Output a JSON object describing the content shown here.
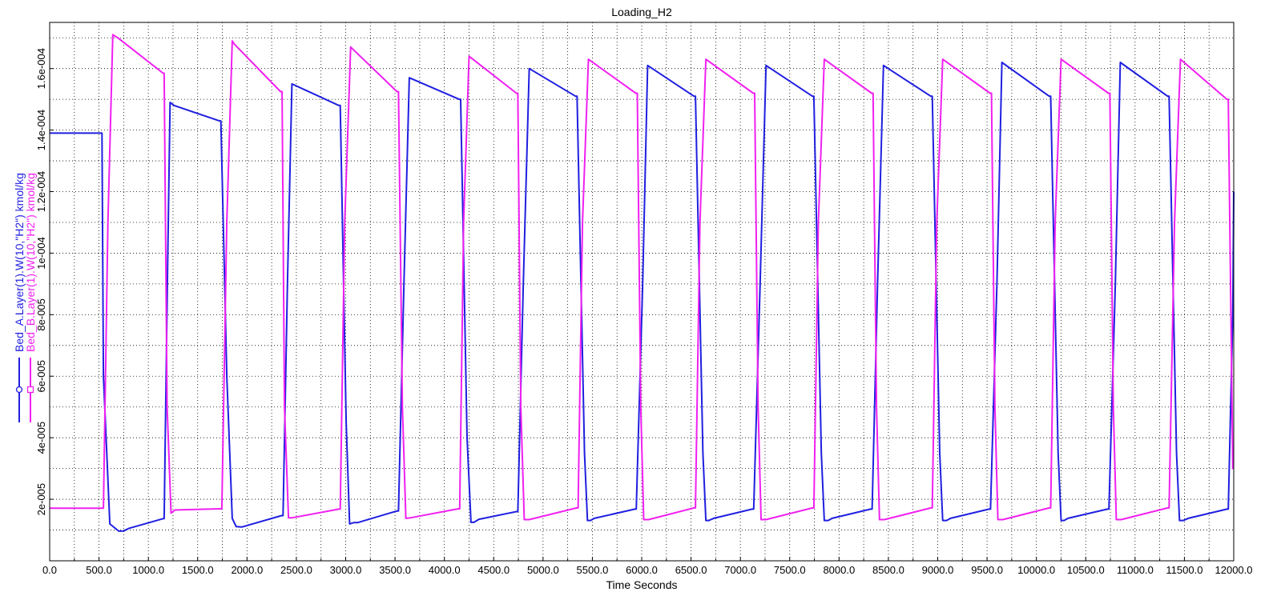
{
  "chart_data": {
    "type": "line",
    "title": "Loading_H2",
    "xlabel": "Time Seconds",
    "ylabel": "",
    "xlim": [
      0,
      12000
    ],
    "ylim": [
      0,
      0.000175
    ],
    "grid": true,
    "x_tick_values": [
      0,
      500,
      1000,
      1500,
      2000,
      2500,
      3000,
      3500,
      4000,
      4500,
      5000,
      5500,
      6000,
      6500,
      7000,
      7500,
      8000,
      8500,
      9000,
      9500,
      10000,
      10500,
      11000,
      11500,
      12000
    ],
    "x_tick_labels": [
      "0.0",
      "500.0",
      "1000.0",
      "1500.0",
      "2000.0",
      "2500.0",
      "3000.0",
      "3500.0",
      "4000.0",
      "4500.0",
      "5000.0",
      "5500.0",
      "6000.0",
      "6500.0",
      "7000.0",
      "7500.0",
      "8000.0",
      "8500.0",
      "9000.0",
      "9500.0",
      "10000.0",
      "10500.0",
      "11000.0",
      "11500.0",
      "12000.0"
    ],
    "y_tick_values": [
      2e-05,
      4e-05,
      6e-05,
      8e-05,
      0.0001,
      0.00012,
      0.00014,
      0.00016
    ],
    "y_tick_labels": [
      "2e-005",
      "4e-005",
      "6e-005",
      "8e-005",
      "1e-004",
      "1.2e-004",
      "1.4e-004",
      "1.6e-004"
    ],
    "legend_position": "left-vertical",
    "series": [
      {
        "name": "Bed_A.Layer(1).W(10,\"H2\") kmol/kg",
        "color": "#1f1fe0",
        "marker": "circle",
        "x": [
          0,
          530,
          545,
          610,
          700,
          750,
          800,
          1150,
          1160,
          1195,
          1220,
          1260,
          1720,
          1735,
          1795,
          1850,
          1890,
          1950,
          2350,
          2365,
          2410,
          2455,
          2930,
          2945,
          3005,
          3040,
          3080,
          3120,
          3520,
          3535,
          3590,
          3645,
          4150,
          4165,
          4230,
          4270,
          4300,
          4350,
          4730,
          4745,
          4800,
          4860,
          5330,
          5345,
          5420,
          5450,
          5480,
          5520,
          5930,
          5945,
          6010,
          6060,
          6530,
          6545,
          6620,
          6650,
          6680,
          6730,
          7120,
          7135,
          7200,
          7260,
          7730,
          7745,
          7820,
          7850,
          7890,
          7930,
          8320,
          8335,
          8390,
          8450,
          8930,
          8945,
          9020,
          9050,
          9090,
          9130,
          9520,
          9535,
          9600,
          9650,
          10130,
          10145,
          10220,
          10250,
          10280,
          10320,
          10720,
          10735,
          10800,
          10850,
          11330,
          11345,
          11420,
          11450,
          11490,
          11540,
          11930,
          11945,
          11990,
          12000
        ],
        "y": [
          0.000139,
          0.000139,
          6e-05,
          1.2e-05,
          9.65e-06,
          9.7e-06,
          1.05e-05,
          1.37e-05,
          1.37e-05,
          9.5e-05,
          0.000149,
          0.000148,
          0.000143,
          0.000143,
          6e-05,
          1.38e-05,
          1.11e-05,
          1.1e-05,
          1.47e-05,
          1.47e-05,
          9e-05,
          0.000155,
          0.000148,
          0.000148,
          4.5e-05,
          1.2e-05,
          1.24e-05,
          1.24e-05,
          1.62e-05,
          1.62e-05,
          9e-05,
          0.000157,
          0.00015,
          0.00015,
          4e-05,
          1.25e-05,
          1.25e-05,
          1.35e-05,
          1.6e-05,
          1.6e-05,
          9e-05,
          0.00016,
          0.000151,
          0.000151,
          3.5e-05,
          1.31e-05,
          1.31e-05,
          1.38e-05,
          1.68e-05,
          1.68e-05,
          9e-05,
          0.000161,
          0.000151,
          0.000151,
          3.5e-05,
          1.31e-05,
          1.31e-05,
          1.38e-05,
          1.68e-05,
          1.68e-05,
          9e-05,
          0.000161,
          0.000151,
          0.000151,
          3.5e-05,
          1.31e-05,
          1.31e-05,
          1.38e-05,
          1.68e-05,
          1.68e-05,
          9e-05,
          0.000161,
          0.000151,
          0.000151,
          3.5e-05,
          1.31e-05,
          1.31e-05,
          1.38e-05,
          1.68e-05,
          1.68e-05,
          9e-05,
          0.000162,
          0.000151,
          0.000151,
          3.5e-05,
          1.31e-05,
          1.31e-05,
          1.38e-05,
          1.68e-05,
          1.68e-05,
          9e-05,
          0.000162,
          0.000151,
          0.000151,
          3.5e-05,
          1.31e-05,
          1.31e-05,
          1.38e-05,
          1.68e-05,
          1.68e-05,
          8e-05,
          0.00012
        ]
      },
      {
        "name": "Bed_B.Layer(1).W(10,\"H2\") kmol/kg",
        "color": "#f020f0",
        "marker": "square",
        "x": [
          0,
          530,
          545,
          590,
          640,
          690,
          1150,
          1160,
          1190,
          1230,
          1270,
          1730,
          1745,
          1795,
          1850,
          1870,
          2340,
          2355,
          2380,
          2420,
          2460,
          2930,
          2945,
          2990,
          3050,
          3520,
          3535,
          3575,
          3610,
          3660,
          4140,
          4155,
          4195,
          4250,
          4730,
          4745,
          4775,
          4810,
          4860,
          5340,
          5355,
          5400,
          5460,
          5940,
          5955,
          5990,
          6020,
          6070,
          6530,
          6545,
          6590,
          6650,
          7130,
          7145,
          7180,
          7210,
          7260,
          7730,
          7745,
          7790,
          7850,
          8330,
          8345,
          8380,
          8410,
          8460,
          8930,
          8945,
          8990,
          9050,
          9530,
          9545,
          9580,
          9610,
          9660,
          10130,
          10145,
          10190,
          10250,
          10730,
          10745,
          10780,
          10810,
          10860,
          11330,
          11345,
          11400,
          11460,
          11930,
          11945,
          11990,
          12000
        ],
        "y": [
          1.71e-05,
          1.71e-05,
          1.71e-05,
          0.00011,
          0.000171,
          0.00017,
          0.0001585,
          0.0001585,
          5e-05,
          1.55e-05,
          1.65e-05,
          1.69e-05,
          1.69e-05,
          0.00011,
          0.000169,
          0.000168,
          0.0001525,
          0.0001525,
          5e-05,
          1.4e-05,
          1.4e-05,
          1.68e-05,
          1.68e-05,
          0.00011,
          0.000167,
          0.0001525,
          0.0001525,
          5e-05,
          1.38e-05,
          1.4e-05,
          1.69e-05,
          1.69e-05,
          0.00011,
          0.000164,
          0.000152,
          0.000152,
          5e-05,
          1.34e-05,
          1.34e-05,
          1.72e-05,
          1.72e-05,
          0.00011,
          0.000163,
          0.000152,
          0.000152,
          5e-05,
          1.34e-05,
          1.34e-05,
          1.72e-05,
          1.72e-05,
          0.00011,
          0.000163,
          0.000152,
          0.000152,
          5e-05,
          1.34e-05,
          1.34e-05,
          1.72e-05,
          1.72e-05,
          0.00011,
          0.000163,
          0.000152,
          0.000152,
          5e-05,
          1.34e-05,
          1.34e-05,
          1.72e-05,
          1.72e-05,
          0.00011,
          0.000163,
          0.000152,
          0.000152,
          5e-05,
          1.34e-05,
          1.34e-05,
          1.72e-05,
          1.72e-05,
          0.00011,
          0.000163,
          0.000152,
          0.000152,
          5e-05,
          1.34e-05,
          1.34e-05,
          1.72e-05,
          1.72e-05,
          0.00011,
          0.000163,
          0.00015,
          0.00015,
          3e-05,
          3e-05
        ]
      }
    ]
  }
}
